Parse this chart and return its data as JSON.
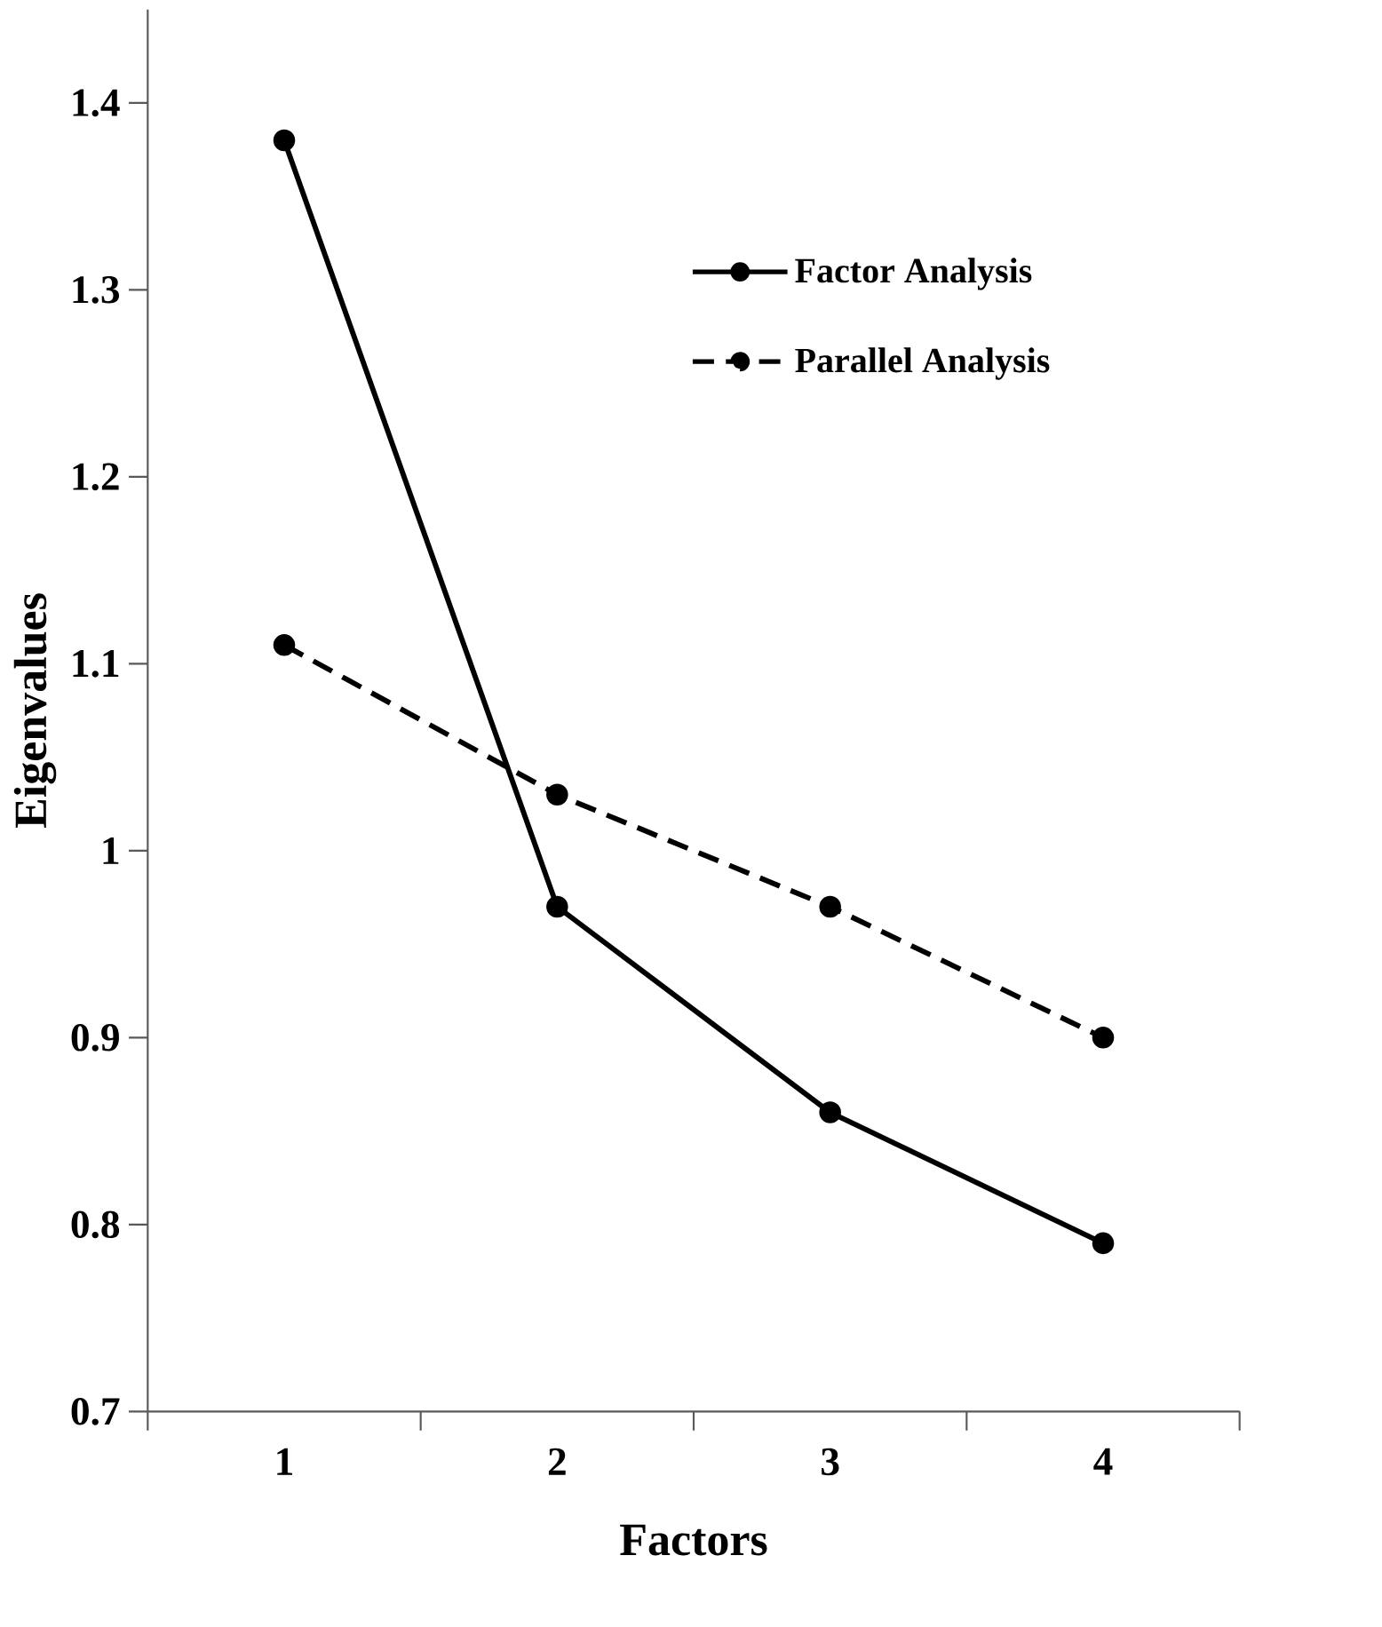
{
  "chart_data": {
    "type": "line",
    "xlabel": "Factors",
    "ylabel": "Eigenvalues",
    "categories": [
      "1",
      "2",
      "3",
      "4"
    ],
    "series": [
      {
        "name": "Factor Analysis",
        "color": "#000000",
        "values": [
          1.38,
          0.97,
          0.86,
          0.79
        ],
        "line_style": "solid"
      },
      {
        "name": "Parallel Analysis",
        "color": "#000000",
        "values": [
          1.11,
          1.03,
          0.97,
          0.9
        ],
        "line_style": "dashed"
      }
    ],
    "ylim": [
      0.7,
      1.45
    ],
    "yticks": [
      0.7,
      0.8,
      0.9,
      {
        "value": 1.0,
        "label": "1"
      },
      1.1,
      1.2,
      1.3,
      1.4
    ],
    "grid": false,
    "legend": "top right",
    "marker": "circle"
  }
}
